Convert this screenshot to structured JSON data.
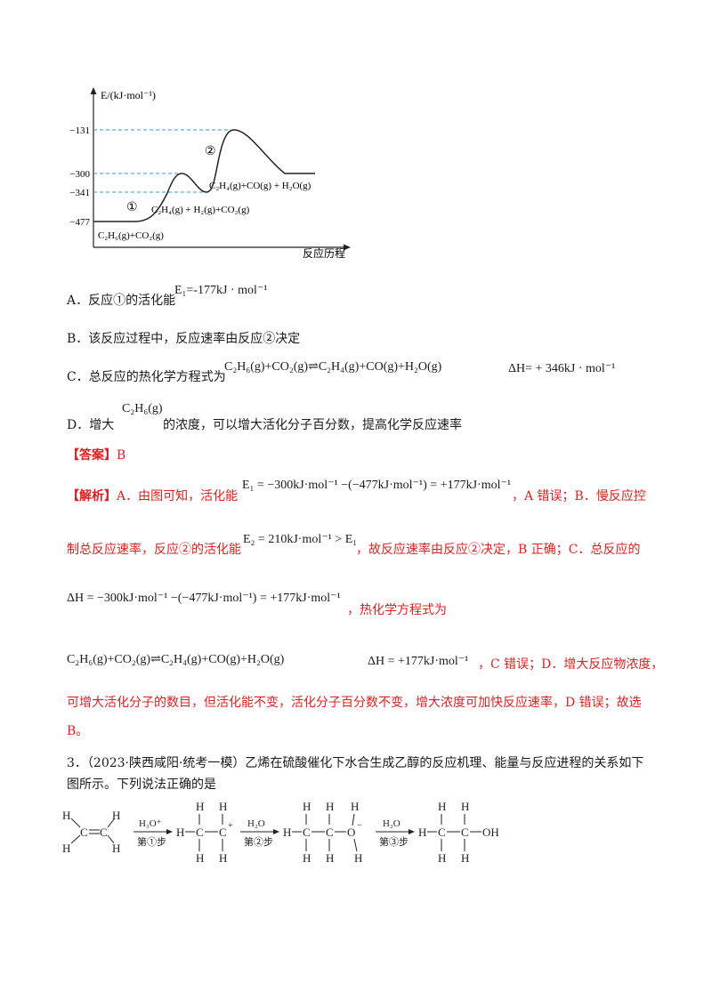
{
  "energy_diagram": {
    "y_axis_label": "E/(kJ·mol⁻¹)",
    "x_axis_label": "反应历程",
    "ticks": [
      "−131",
      "−300",
      "−341",
      "−477"
    ],
    "markers": [
      "①",
      "②"
    ],
    "labels": {
      "reactants": "C₂H₆(g)+CO₂(g)",
      "intermediate": "C₂H₄(g) + H₂(g)+CO₂(g)",
      "products": "C₂H₄(g)+CO(g) + H₂O(g)"
    }
  },
  "options": {
    "A_text": "A．反应①的活化能",
    "A_formula": "E₁=-177kJ · mol⁻¹",
    "B_text": "B．该反应过程中，反应速率由反应②决定",
    "C_text": "C．总反应的热化学方程式为",
    "C_formula": "C₂H₆(g)+CO₂(g)⇌C₂H₄(g)+CO(g)+H₂O(g)",
    "C_dh": "ΔH= + 346kJ · mol⁻¹",
    "D_text1": "D．增大",
    "D_formula": "C₂H₆(g)",
    "D_text2": "的浓度，可以增大活化分子百分数，提高化学反应速率"
  },
  "answer": {
    "label": "【答案】",
    "value": "B"
  },
  "analysis": {
    "label": "【解析】",
    "l1_text": "A．由图可知，活化能",
    "l1_formula": "E₁ = −300kJ·mol⁻¹ −(−477kJ·mol⁻¹) = +177kJ·mol⁻¹",
    "l1_tail": "，A 错误；B．慢反应控",
    "l2_text": "制总反应速率，反应②的活化能",
    "l2_formula": "E₂ = 210kJ·mol⁻¹ > E₁",
    "l2_tail": "，故反应速率由反应②决定，B 正确；C．总反应的",
    "l3_formula": "ΔH = −300kJ·mol⁻¹ −(−477kJ·mol⁻¹) = +177kJ·mol⁻¹",
    "l3_tail": "，热化学方程式为",
    "l4_formula": "C₂H₆(g)+CO₂(g)⇌C₂H₄(g)+CO(g)+H₂O(g)",
    "l4_dh": "ΔH = +177kJ·mol⁻¹",
    "l4_tail": "，C 错误；D．增大反应物浓度，",
    "l5": "可增大活化分子的数目，但活化能不变，活化分子百分数不变，增大浓度可加快反应速率，D 错误；故选",
    "l6": "B。"
  },
  "question3": {
    "l1": "3．（2023·陕西咸阳·统考一模）乙烯在硫酸催化下水合生成乙醇的反应机理、能量与反应进程的关系如下",
    "l2": "图所示。下列说法正确的是"
  },
  "mechanism": {
    "step1_reagent": "H₃O⁺",
    "step1_label": "第①步",
    "step2_reagent": "H₂O",
    "step2_label": "第②步",
    "step3_reagent": "H₂O",
    "step3_label": "第③步",
    "atom_H": "H",
    "atom_C": "C",
    "atom_O": "O",
    "group_OH": "OH",
    "plus": "+",
    "minus": "−"
  }
}
